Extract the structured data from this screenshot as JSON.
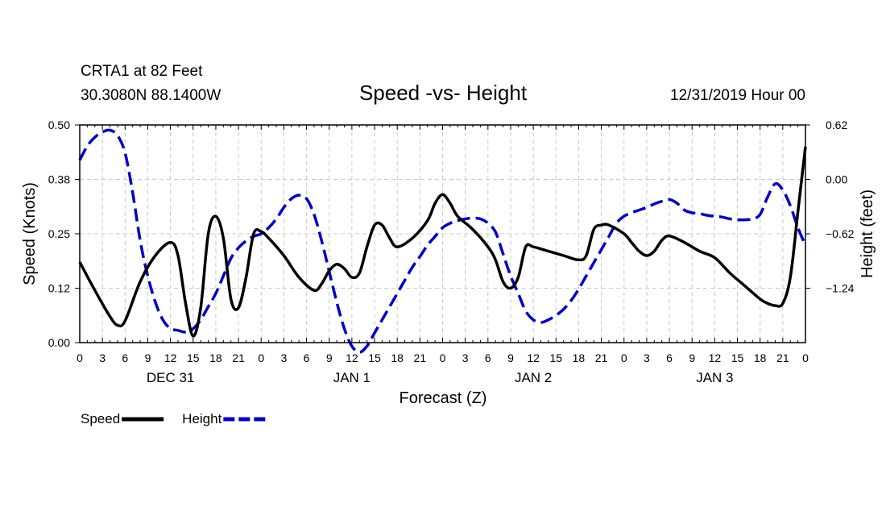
{
  "chart_data": {
    "type": "line",
    "title": "Speed -vs- Height",
    "station": "CRTA1 at 82 Feet",
    "location": "30.3080N 88.1400W",
    "run": "12/31/2019 Hour 00",
    "xlabel": "Forecast (Z)",
    "ylabel_left": "Speed (Knots)",
    "ylabel_right": "Height (feet)",
    "x_range_hours": [
      0,
      96
    ],
    "ylim_left": [
      0,
      0.5
    ],
    "ylim_right": [
      -1.86,
      0.62
    ],
    "y_ticks_left": [
      {
        "value": 0,
        "label": "0.00"
      },
      {
        "value": 0.125,
        "label": "0.12"
      },
      {
        "value": 0.25,
        "label": "0.25"
      },
      {
        "value": 0.375,
        "label": "0.38"
      },
      {
        "value": 0.5,
        "label": "0.50"
      }
    ],
    "y_ticks_right": [
      {
        "value": 0.62,
        "label": "0.62"
      },
      {
        "value": 0,
        "label": "0.00"
      },
      {
        "value": -0.62,
        "label": "−0.62"
      },
      {
        "value": -1.24,
        "label": "−1.24"
      }
    ],
    "x_tick_labels": [
      "0",
      "3",
      "6",
      "9",
      "12",
      "15",
      "18",
      "21",
      "0",
      "3",
      "6",
      "9",
      "12",
      "15",
      "18",
      "21",
      "0",
      "3",
      "6",
      "9",
      "12",
      "15",
      "18",
      "21",
      "0",
      "3",
      "6",
      "9",
      "12",
      "15",
      "18",
      "21",
      "0"
    ],
    "day_labels": [
      {
        "hour": 12,
        "label": "DEC 31"
      },
      {
        "hour": 36,
        "label": "JAN 1"
      },
      {
        "hour": 60,
        "label": "JAN 2"
      },
      {
        "hour": 84,
        "label": "JAN 3"
      }
    ],
    "series": [
      {
        "name": "Speed",
        "axis": "left",
        "color": "#000000",
        "style": "solid",
        "points": [
          [
            0,
            0.185
          ],
          [
            2,
            0.12
          ],
          [
            4,
            0.06
          ],
          [
            5,
            0.04
          ],
          [
            6,
            0.05
          ],
          [
            8,
            0.14
          ],
          [
            10,
            0.2
          ],
          [
            12,
            0.23
          ],
          [
            13,
            0.2
          ],
          [
            14,
            0.09
          ],
          [
            15,
            0.015
          ],
          [
            16,
            0.08
          ],
          [
            17,
            0.25
          ],
          [
            18,
            0.29
          ],
          [
            19,
            0.24
          ],
          [
            20,
            0.1
          ],
          [
            21,
            0.08
          ],
          [
            22,
            0.15
          ],
          [
            23,
            0.25
          ],
          [
            24,
            0.255
          ],
          [
            25,
            0.24
          ],
          [
            27,
            0.2
          ],
          [
            29,
            0.15
          ],
          [
            31,
            0.12
          ],
          [
            32,
            0.135
          ],
          [
            33,
            0.165
          ],
          [
            34,
            0.18
          ],
          [
            35,
            0.17
          ],
          [
            36,
            0.15
          ],
          [
            37,
            0.16
          ],
          [
            38,
            0.22
          ],
          [
            39,
            0.27
          ],
          [
            40,
            0.27
          ],
          [
            41,
            0.24
          ],
          [
            42,
            0.22
          ],
          [
            44,
            0.24
          ],
          [
            46,
            0.28
          ],
          [
            47,
            0.32
          ],
          [
            48,
            0.34
          ],
          [
            49,
            0.32
          ],
          [
            50,
            0.29
          ],
          [
            52,
            0.26
          ],
          [
            54,
            0.22
          ],
          [
            55,
            0.19
          ],
          [
            56,
            0.14
          ],
          [
            57,
            0.125
          ],
          [
            58,
            0.15
          ],
          [
            59,
            0.22
          ],
          [
            60,
            0.22
          ],
          [
            62,
            0.21
          ],
          [
            64,
            0.2
          ],
          [
            66,
            0.19
          ],
          [
            67,
            0.2
          ],
          [
            68,
            0.26
          ],
          [
            69,
            0.27
          ],
          [
            70,
            0.27
          ],
          [
            72,
            0.25
          ],
          [
            73,
            0.23
          ],
          [
            74,
            0.21
          ],
          [
            75,
            0.2
          ],
          [
            76,
            0.21
          ],
          [
            77,
            0.235
          ],
          [
            78,
            0.245
          ],
          [
            80,
            0.23
          ],
          [
            82,
            0.21
          ],
          [
            84,
            0.195
          ],
          [
            86,
            0.16
          ],
          [
            88,
            0.13
          ],
          [
            90,
            0.1
          ],
          [
            91,
            0.09
          ],
          [
            92,
            0.085
          ],
          [
            93,
            0.09
          ],
          [
            94,
            0.15
          ],
          [
            95,
            0.3
          ],
          [
            96,
            0.45
          ]
        ]
      },
      {
        "name": "Height",
        "axis": "right",
        "color": "#0000cc",
        "style": "dashed",
        "points": [
          [
            0,
            0.22
          ],
          [
            1,
            0.38
          ],
          [
            2,
            0.48
          ],
          [
            3,
            0.54
          ],
          [
            4,
            0.56
          ],
          [
            5,
            0.5
          ],
          [
            6,
            0.3
          ],
          [
            7,
            -0.15
          ],
          [
            8,
            -0.7
          ],
          [
            9,
            -1.1
          ],
          [
            10,
            -1.4
          ],
          [
            11,
            -1.6
          ],
          [
            12,
            -1.7
          ],
          [
            13,
            -1.72
          ],
          [
            14,
            -1.74
          ],
          [
            15,
            -1.7
          ],
          [
            16,
            -1.6
          ],
          [
            17,
            -1.45
          ],
          [
            18,
            -1.3
          ],
          [
            19,
            -1.1
          ],
          [
            20,
            -0.9
          ],
          [
            21,
            -0.78
          ],
          [
            22,
            -0.7
          ],
          [
            23,
            -0.65
          ],
          [
            24,
            -0.62
          ],
          [
            25,
            -0.55
          ],
          [
            26,
            -0.45
          ],
          [
            27,
            -0.32
          ],
          [
            28,
            -0.22
          ],
          [
            29,
            -0.18
          ],
          [
            30,
            -0.22
          ],
          [
            31,
            -0.4
          ],
          [
            32,
            -0.7
          ],
          [
            33,
            -1.05
          ],
          [
            34,
            -1.4
          ],
          [
            35,
            -1.7
          ],
          [
            36,
            -1.9
          ],
          [
            37,
            -1.97
          ],
          [
            38,
            -1.9
          ],
          [
            39,
            -1.75
          ],
          [
            40,
            -1.6
          ],
          [
            41,
            -1.45
          ],
          [
            42,
            -1.3
          ],
          [
            43,
            -1.15
          ],
          [
            44,
            -1.0
          ],
          [
            45,
            -0.88
          ],
          [
            46,
            -0.75
          ],
          [
            47,
            -0.65
          ],
          [
            48,
            -0.55
          ],
          [
            49,
            -0.5
          ],
          [
            50,
            -0.47
          ],
          [
            51,
            -0.45
          ],
          [
            52,
            -0.44
          ],
          [
            53,
            -0.45
          ],
          [
            54,
            -0.5
          ],
          [
            55,
            -0.6
          ],
          [
            56,
            -0.85
          ],
          [
            57,
            -1.1
          ],
          [
            58,
            -1.3
          ],
          [
            59,
            -1.5
          ],
          [
            60,
            -1.6
          ],
          [
            61,
            -1.63
          ],
          [
            62,
            -1.6
          ],
          [
            63,
            -1.55
          ],
          [
            64,
            -1.48
          ],
          [
            65,
            -1.38
          ],
          [
            66,
            -1.25
          ],
          [
            67,
            -1.1
          ],
          [
            68,
            -0.95
          ],
          [
            69,
            -0.8
          ],
          [
            70,
            -0.65
          ],
          [
            71,
            -0.5
          ],
          [
            72,
            -0.42
          ],
          [
            73,
            -0.38
          ],
          [
            74,
            -0.35
          ],
          [
            75,
            -0.32
          ],
          [
            76,
            -0.28
          ],
          [
            77,
            -0.25
          ],
          [
            78,
            -0.23
          ],
          [
            79,
            -0.27
          ],
          [
            80,
            -0.35
          ],
          [
            81,
            -0.38
          ],
          [
            82,
            -0.39
          ],
          [
            83,
            -0.41
          ],
          [
            84,
            -0.42
          ],
          [
            85,
            -0.43
          ],
          [
            86,
            -0.45
          ],
          [
            87,
            -0.46
          ],
          [
            88,
            -0.46
          ],
          [
            89,
            -0.45
          ],
          [
            90,
            -0.4
          ],
          [
            91,
            -0.2
          ],
          [
            92,
            -0.05
          ],
          [
            93,
            -0.12
          ],
          [
            94,
            -0.3
          ],
          [
            95,
            -0.55
          ],
          [
            96,
            -0.75
          ]
        ]
      }
    ],
    "legend": [
      {
        "label": "Speed",
        "color": "#000000",
        "style": "solid"
      },
      {
        "label": "Height",
        "color": "#0000cc",
        "style": "dashed"
      }
    ],
    "grid": true
  }
}
